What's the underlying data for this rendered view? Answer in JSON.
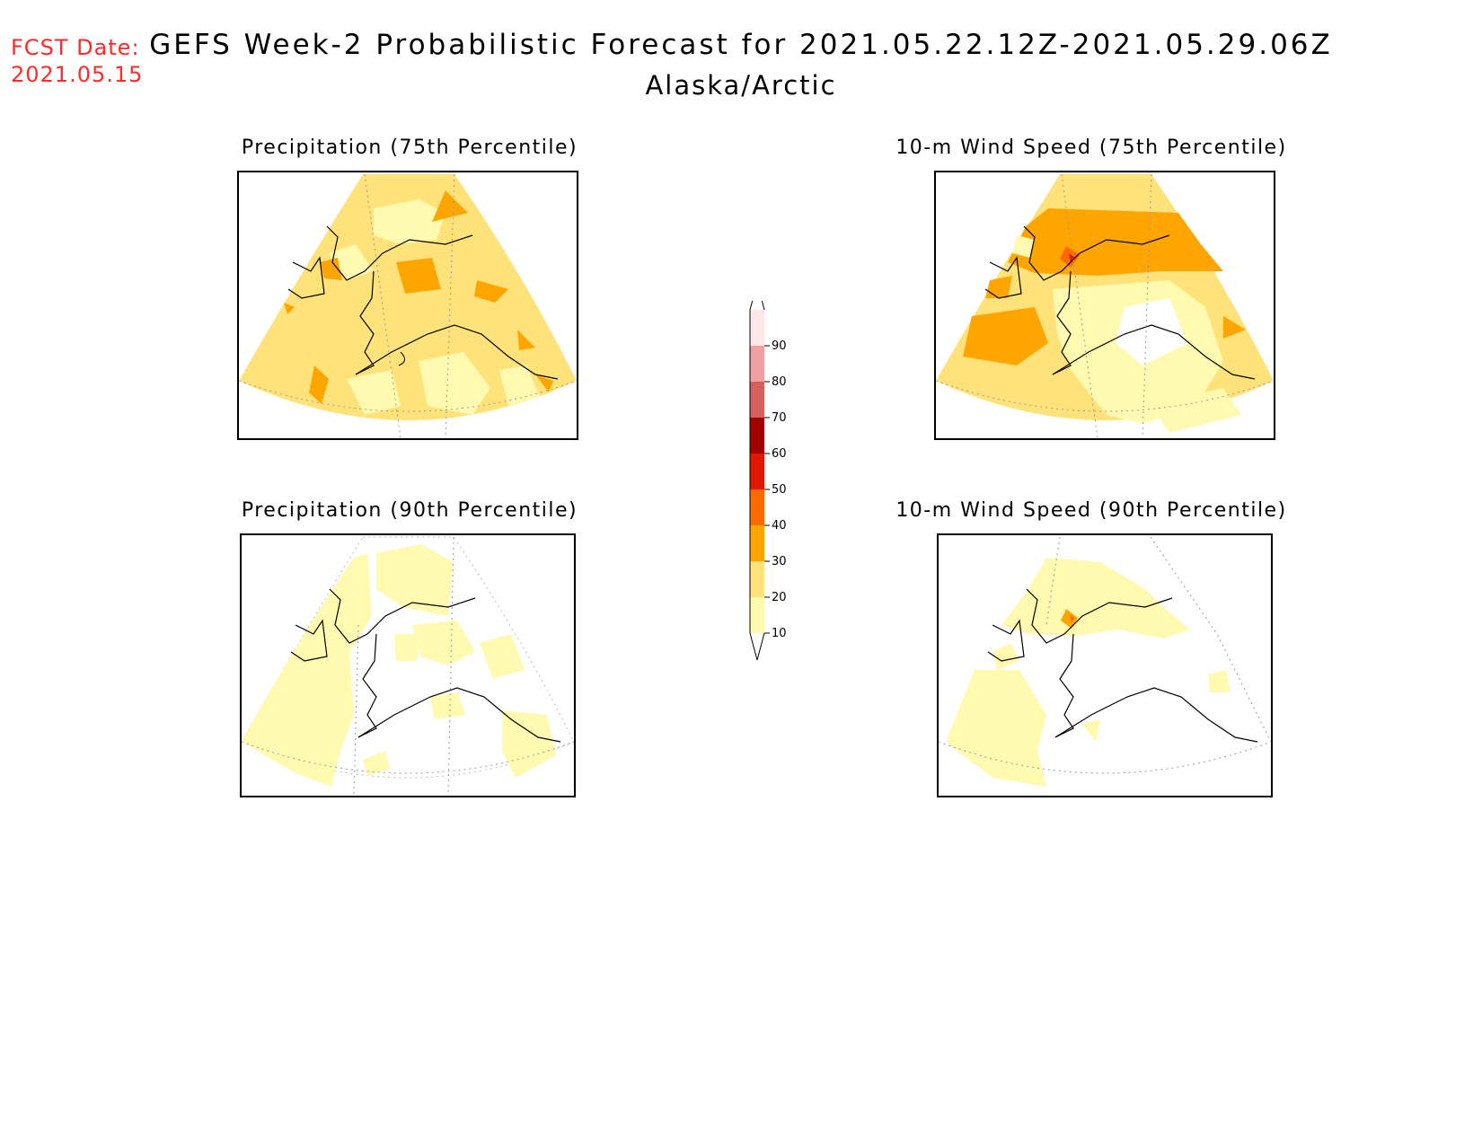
{
  "header": {
    "fcst_label": "FCST Date:",
    "fcst_date": "2021.05.15",
    "title": "GEFS Week-2 Probabilistic Forecast for 2021.05.22.12Z-2021.05.29.06Z",
    "region": "Alaska/Arctic"
  },
  "panels": [
    {
      "title": "Precipitation (75th Percentile)"
    },
    {
      "title": "10-m Wind Speed (75th Percentile)"
    },
    {
      "title": "Precipitation (90th Percentile)"
    },
    {
      "title": "10-m Wind Speed (90th Percentile)"
    }
  ],
  "colorbar": {
    "levels": [
      "10",
      "20",
      "30",
      "40",
      "50",
      "60",
      "70",
      "80",
      "90"
    ],
    "colors": [
      "#fffab0",
      "#ffe37a",
      "#ffa500",
      "#ff6a00",
      "#e01800",
      "#a00000",
      "#d46060",
      "#f0a0a0",
      "#fce8e8"
    ]
  }
}
